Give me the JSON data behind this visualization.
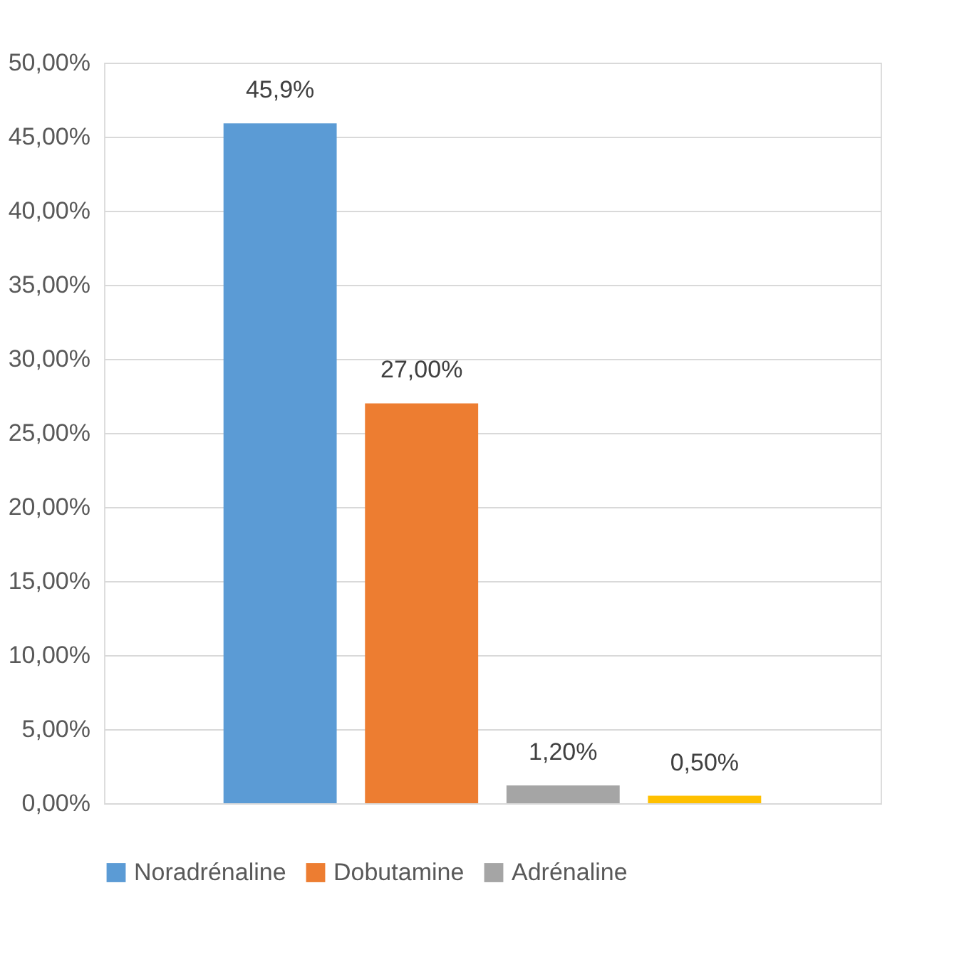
{
  "chart_data": {
    "type": "bar",
    "categories": [
      null
    ],
    "series": [
      {
        "name": "Noradrénaline",
        "color": "#5b9bd5",
        "values": [
          45.9
        ],
        "value_labels": [
          "45,9%"
        ]
      },
      {
        "name": "Dobutamine",
        "color": "#ed7d31",
        "values": [
          27.0
        ],
        "value_labels": [
          "27,00%"
        ]
      },
      {
        "name": "Adrénaline",
        "color": "#a5a5a5",
        "values": [
          1.2
        ],
        "value_labels": [
          "1,20%"
        ]
      },
      {
        "color": "#ffc000",
        "values": [
          0.5
        ],
        "value_labels": [
          "0,50%"
        ]
      }
    ],
    "ylim": [
      0,
      50
    ],
    "yticks": [
      {
        "value": 0,
        "label": "0,00%"
      },
      {
        "value": 5,
        "label": "5,00%"
      },
      {
        "value": 10,
        "label": "10,00%"
      },
      {
        "value": 15,
        "label": "15,00%"
      },
      {
        "value": 20,
        "label": "20,00%"
      },
      {
        "value": 25,
        "label": "25,00%"
      },
      {
        "value": 30,
        "label": "30,00%"
      },
      {
        "value": 35,
        "label": "35,00%"
      },
      {
        "value": 40,
        "label": "40,00%"
      },
      {
        "value": 45,
        "label": "45,00%"
      },
      {
        "value": 50,
        "label": "50,00%"
      }
    ],
    "grid": "y",
    "legend": "bottom",
    "tick_labels": "y"
  }
}
